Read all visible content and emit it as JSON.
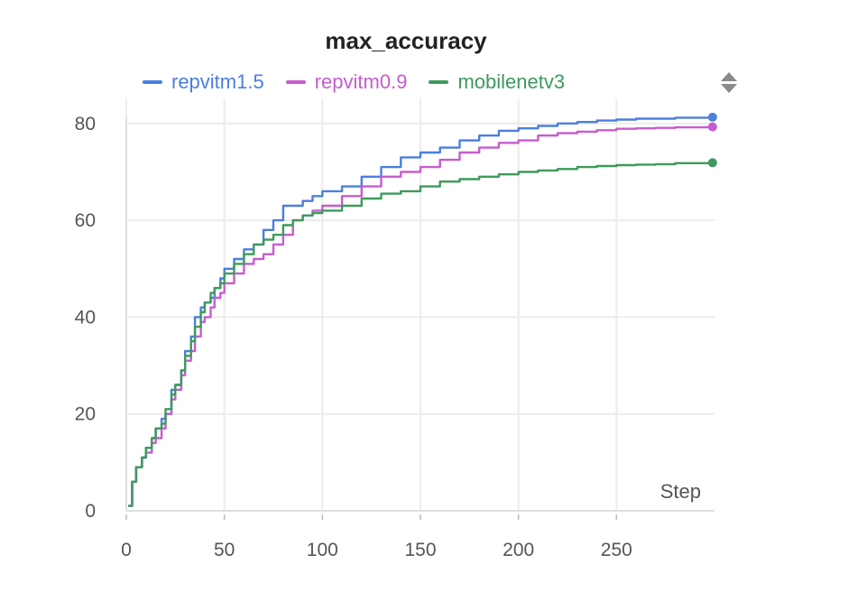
{
  "chart_data": {
    "type": "line",
    "title": "max_accuracy",
    "xlabel": "Step",
    "ylabel": "",
    "xlim": [
      0,
      300
    ],
    "ylim": [
      0,
      85
    ],
    "xticks": [
      0,
      50,
      100,
      150,
      200,
      250
    ],
    "yticks": [
      0,
      20,
      40,
      60,
      80
    ],
    "grid": true,
    "legend_position": "top",
    "series": [
      {
        "name": "repvitm1.5",
        "color": "#4a7fe0",
        "points": [
          [
            1,
            1
          ],
          [
            3,
            6
          ],
          [
            5,
            9
          ],
          [
            8,
            11
          ],
          [
            10,
            13
          ],
          [
            13,
            15
          ],
          [
            15,
            17
          ],
          [
            18,
            19
          ],
          [
            20,
            20
          ],
          [
            23,
            25
          ],
          [
            25,
            26
          ],
          [
            28,
            29
          ],
          [
            30,
            33
          ],
          [
            33,
            36
          ],
          [
            35,
            40
          ],
          [
            38,
            42
          ],
          [
            40,
            43
          ],
          [
            43,
            44
          ],
          [
            45,
            46
          ],
          [
            48,
            48
          ],
          [
            50,
            50
          ],
          [
            55,
            52
          ],
          [
            60,
            54
          ],
          [
            65,
            55
          ],
          [
            70,
            58
          ],
          [
            75,
            60
          ],
          [
            80,
            63
          ],
          [
            85,
            63
          ],
          [
            90,
            64
          ],
          [
            95,
            65
          ],
          [
            100,
            66
          ],
          [
            110,
            67
          ],
          [
            120,
            69
          ],
          [
            130,
            71
          ],
          [
            140,
            73
          ],
          [
            150,
            74
          ],
          [
            160,
            75
          ],
          [
            170,
            76.5
          ],
          [
            180,
            77.5
          ],
          [
            190,
            78.5
          ],
          [
            200,
            79
          ],
          [
            210,
            79.5
          ],
          [
            220,
            80
          ],
          [
            230,
            80.3
          ],
          [
            240,
            80.6
          ],
          [
            250,
            80.8
          ],
          [
            260,
            81
          ],
          [
            270,
            81
          ],
          [
            280,
            81.2
          ],
          [
            299,
            81.3
          ]
        ]
      },
      {
        "name": "repvitm0.9",
        "color": "#c65ccf",
        "points": [
          [
            1,
            1
          ],
          [
            3,
            6
          ],
          [
            5,
            9
          ],
          [
            8,
            11
          ],
          [
            10,
            12
          ],
          [
            13,
            14
          ],
          [
            15,
            15
          ],
          [
            18,
            17
          ],
          [
            20,
            20
          ],
          [
            23,
            23
          ],
          [
            25,
            25
          ],
          [
            28,
            28
          ],
          [
            30,
            31
          ],
          [
            33,
            33
          ],
          [
            35,
            36
          ],
          [
            38,
            39
          ],
          [
            40,
            40
          ],
          [
            43,
            42
          ],
          [
            45,
            44
          ],
          [
            48,
            45
          ],
          [
            50,
            47
          ],
          [
            55,
            49
          ],
          [
            60,
            51
          ],
          [
            65,
            52
          ],
          [
            70,
            53
          ],
          [
            75,
            55
          ],
          [
            80,
            57
          ],
          [
            85,
            60
          ],
          [
            90,
            61
          ],
          [
            95,
            62
          ],
          [
            100,
            63
          ],
          [
            110,
            65
          ],
          [
            120,
            67
          ],
          [
            130,
            69
          ],
          [
            140,
            70
          ],
          [
            150,
            71
          ],
          [
            160,
            72.5
          ],
          [
            170,
            74
          ],
          [
            180,
            75
          ],
          [
            190,
            76
          ],
          [
            200,
            76.5
          ],
          [
            210,
            77.5
          ],
          [
            220,
            78
          ],
          [
            230,
            78.3
          ],
          [
            240,
            78.6
          ],
          [
            250,
            78.9
          ],
          [
            260,
            79
          ],
          [
            270,
            79.1
          ],
          [
            280,
            79.2
          ],
          [
            299,
            79.3
          ]
        ]
      },
      {
        "name": "mobilenetv3",
        "color": "#3e9a5c",
        "points": [
          [
            1,
            1
          ],
          [
            3,
            6
          ],
          [
            5,
            9
          ],
          [
            8,
            11
          ],
          [
            10,
            13
          ],
          [
            13,
            15
          ],
          [
            15,
            17
          ],
          [
            18,
            18
          ],
          [
            20,
            21
          ],
          [
            23,
            24
          ],
          [
            25,
            26
          ],
          [
            28,
            29
          ],
          [
            30,
            32
          ],
          [
            33,
            35
          ],
          [
            35,
            38
          ],
          [
            38,
            41
          ],
          [
            40,
            43
          ],
          [
            43,
            45
          ],
          [
            45,
            46
          ],
          [
            48,
            47
          ],
          [
            50,
            49
          ],
          [
            55,
            51
          ],
          [
            60,
            53
          ],
          [
            65,
            55
          ],
          [
            70,
            56
          ],
          [
            75,
            57
          ],
          [
            80,
            59
          ],
          [
            85,
            60
          ],
          [
            90,
            61
          ],
          [
            95,
            61.5
          ],
          [
            100,
            62
          ],
          [
            110,
            63
          ],
          [
            120,
            64.5
          ],
          [
            130,
            65.5
          ],
          [
            140,
            66
          ],
          [
            150,
            67
          ],
          [
            160,
            68
          ],
          [
            170,
            68.5
          ],
          [
            180,
            69
          ],
          [
            190,
            69.5
          ],
          [
            200,
            70
          ],
          [
            210,
            70.3
          ],
          [
            220,
            70.6
          ],
          [
            230,
            71
          ],
          [
            240,
            71.2
          ],
          [
            250,
            71.4
          ],
          [
            260,
            71.5
          ],
          [
            270,
            71.6
          ],
          [
            280,
            71.8
          ],
          [
            299,
            71.9
          ]
        ]
      }
    ]
  }
}
